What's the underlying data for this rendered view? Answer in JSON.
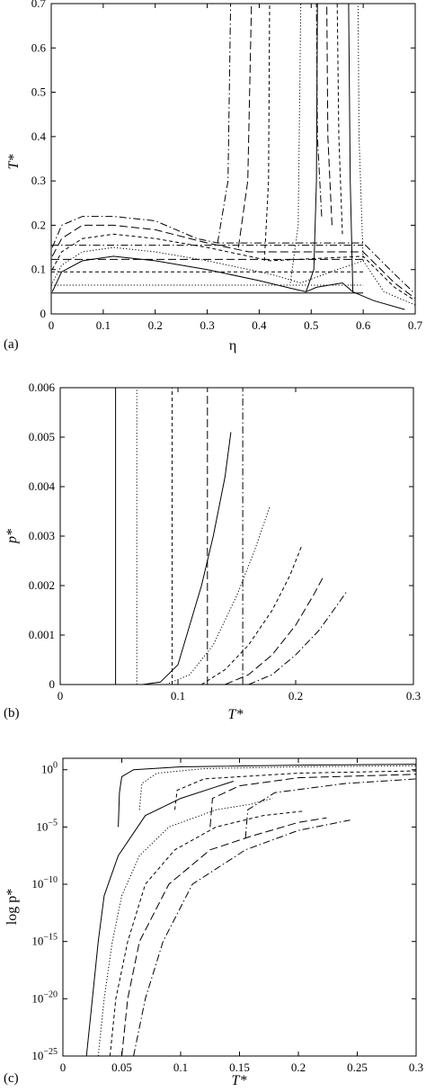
{
  "charts": [
    {
      "panel_label": "(a)",
      "type": "line",
      "xlabel": "η",
      "ylabel": "T*",
      "xlim": [
        0,
        0.7
      ],
      "ylim": [
        0,
        0.7
      ],
      "xticks": [
        "0",
        "0.1",
        "0.2",
        "0.3",
        "0.4",
        "0.5",
        "0.6",
        "0.7"
      ],
      "yticks": [
        "0",
        "0.1",
        "0.2",
        "0.3",
        "0.4",
        "0.5",
        "0.6",
        "0.7"
      ],
      "series": [
        {
          "style": "solid",
          "horiz_T": 0.047,
          "binodal": [
            [
              0.002,
              0.05
            ],
            [
              0.02,
              0.095
            ],
            [
              0.06,
              0.12
            ],
            [
              0.12,
              0.13
            ],
            [
              0.2,
              0.12
            ],
            [
              0.3,
              0.1
            ],
            [
              0.4,
              0.075
            ],
            [
              0.46,
              0.058
            ],
            [
              0.49,
              0.05
            ],
            [
              0.51,
              0.06
            ],
            [
              0.56,
              0.07
            ],
            [
              0.58,
              0.05
            ],
            [
              0.62,
              0.03
            ],
            [
              0.68,
              0.01
            ]
          ],
          "vertical": [
            [
              0.49,
              0.05
            ],
            [
              0.505,
              0.1
            ],
            [
              0.51,
              0.3
            ],
            [
              0.512,
              0.7
            ]
          ],
          "vertical2": [
            [
              0.58,
              0.05
            ],
            [
              0.575,
              0.3
            ],
            [
              0.572,
              0.7
            ]
          ]
        },
        {
          "style": "dotted",
          "horiz_T": 0.065,
          "binodal": [
            [
              0.002,
              0.07
            ],
            [
              0.02,
              0.11
            ],
            [
              0.06,
              0.14
            ],
            [
              0.12,
              0.15
            ],
            [
              0.2,
              0.14
            ],
            [
              0.3,
              0.12
            ],
            [
              0.42,
              0.09
            ],
            [
              0.48,
              0.07
            ],
            [
              0.55,
              0.1
            ],
            [
              0.6,
              0.12
            ],
            [
              0.64,
              0.05
            ],
            [
              0.7,
              0.02
            ]
          ],
          "vertical": [
            [
              0.46,
              0.07
            ],
            [
              0.475,
              0.2
            ],
            [
              0.48,
              0.7
            ]
          ],
          "vertical2": [
            [
              0.6,
              0.12
            ],
            [
              0.592,
              0.4
            ],
            [
              0.59,
              0.7
            ]
          ]
        },
        {
          "style": "short-dash",
          "horiz_T": 0.095,
          "binodal": [
            [
              0.002,
              0.1
            ],
            [
              0.02,
              0.14
            ],
            [
              0.06,
              0.17
            ],
            [
              0.12,
              0.18
            ],
            [
              0.2,
              0.17
            ],
            [
              0.3,
              0.15
            ],
            [
              0.38,
              0.13
            ],
            [
              0.42,
              0.12
            ],
            [
              0.6,
              0.13
            ],
            [
              0.66,
              0.06
            ],
            [
              0.7,
              0.03
            ]
          ],
          "vertical": [
            [
              0.41,
              0.12
            ],
            [
              0.418,
              0.3
            ],
            [
              0.42,
              0.7
            ]
          ],
          "vertical2": [
            [
              0.56,
              0.18
            ],
            [
              0.553,
              0.4
            ],
            [
              0.55,
              0.7
            ]
          ]
        },
        {
          "style": "long-dash",
          "horiz_T": 0.123,
          "binodal": [
            [
              0.002,
              0.13
            ],
            [
              0.02,
              0.17
            ],
            [
              0.06,
              0.2
            ],
            [
              0.12,
              0.2
            ],
            [
              0.2,
              0.19
            ],
            [
              0.3,
              0.16
            ],
            [
              0.38,
              0.14
            ],
            [
              0.6,
              0.14
            ],
            [
              0.66,
              0.07
            ],
            [
              0.7,
              0.035
            ]
          ],
          "vertical": [
            [
              0.36,
              0.15
            ],
            [
              0.378,
              0.3
            ],
            [
              0.385,
              0.7
            ]
          ],
          "vertical2": [
            [
              0.54,
              0.2
            ],
            [
              0.532,
              0.4
            ],
            [
              0.53,
              0.7
            ]
          ]
        },
        {
          "style": "dash-dot",
          "horiz_T": 0.155,
          "binodal": [
            [
              0.002,
              0.15
            ],
            [
              0.02,
              0.2
            ],
            [
              0.06,
              0.22
            ],
            [
              0.12,
              0.22
            ],
            [
              0.2,
              0.21
            ],
            [
              0.28,
              0.17
            ],
            [
              0.32,
              0.16
            ],
            [
              0.6,
              0.16
            ],
            [
              0.66,
              0.09
            ],
            [
              0.7,
              0.045
            ]
          ],
          "vertical": [
            [
              0.32,
              0.16
            ],
            [
              0.34,
              0.3
            ],
            [
              0.345,
              0.7
            ]
          ],
          "vertical2": [
            [
              0.52,
              0.22
            ],
            [
              0.512,
              0.4
            ],
            [
              0.51,
              0.7
            ]
          ]
        }
      ]
    },
    {
      "panel_label": "(b)",
      "type": "line",
      "xlabel": "T*",
      "ylabel": "p*",
      "xlim": [
        0,
        0.3
      ],
      "ylim": [
        0,
        0.006
      ],
      "xticks": [
        "0",
        "0.1",
        "0.2",
        "0.3"
      ],
      "yticks": [
        "0",
        "0.001",
        "0.002",
        "0.003",
        "0.004",
        "0.005",
        "0.006"
      ],
      "series": [
        {
          "style": "solid",
          "vline": 0.047,
          "curve": [
            [
              0.07,
              0
            ],
            [
              0.085,
              5e-05
            ],
            [
              0.1,
              0.0004
            ],
            [
              0.11,
              0.0012
            ],
            [
              0.12,
              0.002
            ],
            [
              0.13,
              0.003
            ],
            [
              0.14,
              0.0042
            ],
            [
              0.145,
              0.0051
            ]
          ]
        },
        {
          "style": "dotted",
          "vline": 0.065,
          "curve": [
            [
              0.09,
              0
            ],
            [
              0.11,
              0.0002
            ],
            [
              0.13,
              0.0008
            ],
            [
              0.15,
              0.0018
            ],
            [
              0.165,
              0.0027
            ],
            [
              0.178,
              0.0036
            ]
          ]
        },
        {
          "style": "short-dash",
          "vline": 0.095,
          "curve": [
            [
              0.12,
              0
            ],
            [
              0.14,
              0.0003
            ],
            [
              0.16,
              0.0008
            ],
            [
              0.18,
              0.0015
            ],
            [
              0.195,
              0.0022
            ],
            [
              0.205,
              0.0028
            ]
          ]
        },
        {
          "style": "long-dash",
          "vline": 0.125,
          "curve": [
            [
              0.14,
              0
            ],
            [
              0.16,
              0.0002
            ],
            [
              0.18,
              0.0006
            ],
            [
              0.2,
              0.0012
            ],
            [
              0.215,
              0.0018
            ],
            [
              0.224,
              0.0022
            ]
          ]
        },
        {
          "style": "dash-dot",
          "vline": 0.155,
          "curve": [
            [
              0.16,
              0
            ],
            [
              0.18,
              0.0002
            ],
            [
              0.2,
              0.0006
            ],
            [
              0.22,
              0.0011
            ],
            [
              0.235,
              0.0016
            ],
            [
              0.244,
              0.0019
            ]
          ]
        }
      ]
    },
    {
      "panel_label": "(c)",
      "type": "line",
      "xlabel": "T*",
      "ylabel": "log p*",
      "xlim": [
        0,
        0.3
      ],
      "ylim": [
        -25,
        1
      ],
      "xticks": [
        "0",
        "0.05",
        "0.1",
        "0.15",
        "0.2",
        "0.25",
        "0.3"
      ],
      "ytick_values": [
        0,
        -5,
        -10,
        -15,
        -20,
        -25
      ],
      "ytick_base": "10",
      "ytick_exponents": [
        "0",
        "−5",
        "−10",
        "−15",
        "−20",
        "−25"
      ],
      "series": [
        {
          "style": "solid",
          "upper": [
            [
              0.047,
              -5
            ],
            [
              0.048,
              -2
            ],
            [
              0.05,
              -0.6
            ],
            [
              0.06,
              0
            ],
            [
              0.1,
              0.25
            ],
            [
              0.2,
              0.4
            ],
            [
              0.3,
              0.48
            ]
          ],
          "lower": [
            [
              0.02,
              -25
            ],
            [
              0.025,
              -20
            ],
            [
              0.03,
              -15
            ],
            [
              0.035,
              -11
            ],
            [
              0.047,
              -7.5
            ],
            [
              0.07,
              -4
            ],
            [
              0.1,
              -2.5
            ],
            [
              0.13,
              -1.5
            ],
            [
              0.145,
              -1
            ]
          ]
        },
        {
          "style": "dotted",
          "upper": [
            [
              0.065,
              -3.5
            ],
            [
              0.067,
              -1.2
            ],
            [
              0.08,
              -0.3
            ],
            [
              0.12,
              0.1
            ],
            [
              0.2,
              0.25
            ],
            [
              0.3,
              0.35
            ]
          ],
          "lower": [
            [
              0.03,
              -25
            ],
            [
              0.035,
              -20
            ],
            [
              0.042,
              -15
            ],
            [
              0.05,
              -11
            ],
            [
              0.065,
              -7.5
            ],
            [
              0.09,
              -5
            ],
            [
              0.13,
              -3.5
            ],
            [
              0.16,
              -3
            ],
            [
              0.178,
              -2.5
            ]
          ]
        },
        {
          "style": "short-dash",
          "upper": [
            [
              0.095,
              -3.5
            ],
            [
              0.097,
              -1.8
            ],
            [
              0.12,
              -0.8
            ],
            [
              0.2,
              -0.3
            ],
            [
              0.3,
              -0.1
            ]
          ],
          "lower": [
            [
              0.04,
              -25
            ],
            [
              0.045,
              -20
            ],
            [
              0.055,
              -15
            ],
            [
              0.07,
              -10
            ],
            [
              0.095,
              -7
            ],
            [
              0.13,
              -5
            ],
            [
              0.17,
              -4
            ],
            [
              0.205,
              -3.6
            ]
          ]
        },
        {
          "style": "long-dash",
          "upper": [
            [
              0.125,
              -5
            ],
            [
              0.127,
              -2.5
            ],
            [
              0.15,
              -1.4
            ],
            [
              0.2,
              -0.7
            ],
            [
              0.3,
              -0.4
            ]
          ],
          "lower": [
            [
              0.05,
              -25
            ],
            [
              0.055,
              -20
            ],
            [
              0.065,
              -15
            ],
            [
              0.09,
              -10
            ],
            [
              0.125,
              -7
            ],
            [
              0.16,
              -5.8
            ],
            [
              0.2,
              -4.6
            ],
            [
              0.224,
              -4.2
            ]
          ]
        },
        {
          "style": "dash-dot",
          "upper": [
            [
              0.155,
              -6
            ],
            [
              0.157,
              -3.5
            ],
            [
              0.18,
              -2
            ],
            [
              0.24,
              -1.2
            ],
            [
              0.3,
              -0.8
            ]
          ],
          "lower": [
            [
              0.06,
              -25
            ],
            [
              0.07,
              -20
            ],
            [
              0.085,
              -15
            ],
            [
              0.11,
              -10
            ],
            [
              0.155,
              -7
            ],
            [
              0.2,
              -5.3
            ],
            [
              0.244,
              -4.4
            ]
          ]
        }
      ]
    }
  ],
  "line_colors": {
    "stroke": "#000000"
  }
}
